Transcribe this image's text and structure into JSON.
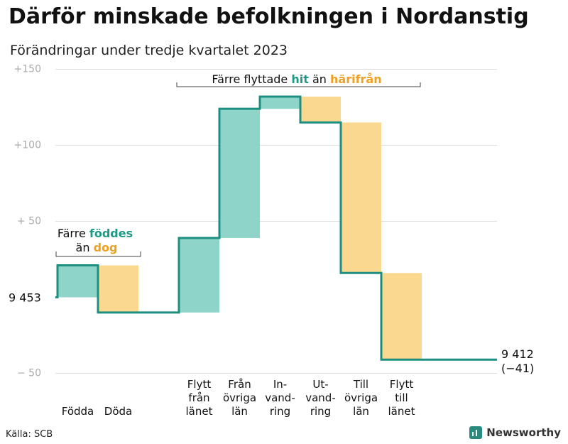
{
  "title": "Därför minskade befolkningen i Nordanstig",
  "subtitle": "Förändringar under tredje kvartalet 2023",
  "source": "Källa: SCB",
  "brand": "Newsworthy",
  "colors": {
    "increase": "#8fd4c9",
    "decrease": "#fbd88f",
    "line": "#1d8f80",
    "teal_text": "#1d9a86",
    "orange_text": "#f0a020",
    "grid": "#dddddd",
    "tick": "#aaaaaa"
  },
  "chart_data": {
    "type": "waterfall",
    "start_value": 9453,
    "start_label": "9  453",
    "end_value": 9412,
    "end_label": "9 412",
    "end_change_label": "(−41)",
    "y_ticks": [
      {
        "value": 150,
        "label": "+150"
      },
      {
        "value": 100,
        "label": "+100"
      },
      {
        "value": 50,
        "label": "+  50"
      },
      {
        "value": -50,
        "label": "−  50"
      }
    ],
    "ylim": [
      -50,
      150
    ],
    "steps": [
      {
        "label": [
          "Födda"
        ],
        "change": 21
      },
      {
        "label": [
          "Döda"
        ],
        "change": -31
      },
      {
        "label": [],
        "change": 0
      },
      {
        "label": [
          "Flytt",
          "från",
          "länet"
        ],
        "change": 49
      },
      {
        "label": [
          "Från",
          "övriga",
          "län"
        ],
        "change": 85
      },
      {
        "label": [
          "In-",
          "vand-",
          "ring"
        ],
        "change": 8
      },
      {
        "label": [
          "Ut-",
          "vand-",
          "ring"
        ],
        "change": -17
      },
      {
        "label": [
          "Till",
          "övriga",
          "län"
        ],
        "change": -99
      },
      {
        "label": [
          "Flytt",
          "till",
          "länet"
        ],
        "change": -57
      }
    ],
    "annotations": [
      {
        "parts": [
          {
            "text": "Färre ",
            "style": "plain"
          },
          {
            "text": "föddes",
            "style": "teal"
          }
        ],
        "parts2": [
          {
            "text": "än ",
            "style": "plain"
          },
          {
            "text": "dog",
            "style": "orange"
          }
        ]
      },
      {
        "parts": [
          {
            "text": "Färre flyttade ",
            "style": "plain"
          },
          {
            "text": "hit",
            "style": "teal"
          },
          {
            "text": " än ",
            "style": "plain"
          },
          {
            "text": "härifrån",
            "style": "orange"
          }
        ]
      }
    ]
  }
}
